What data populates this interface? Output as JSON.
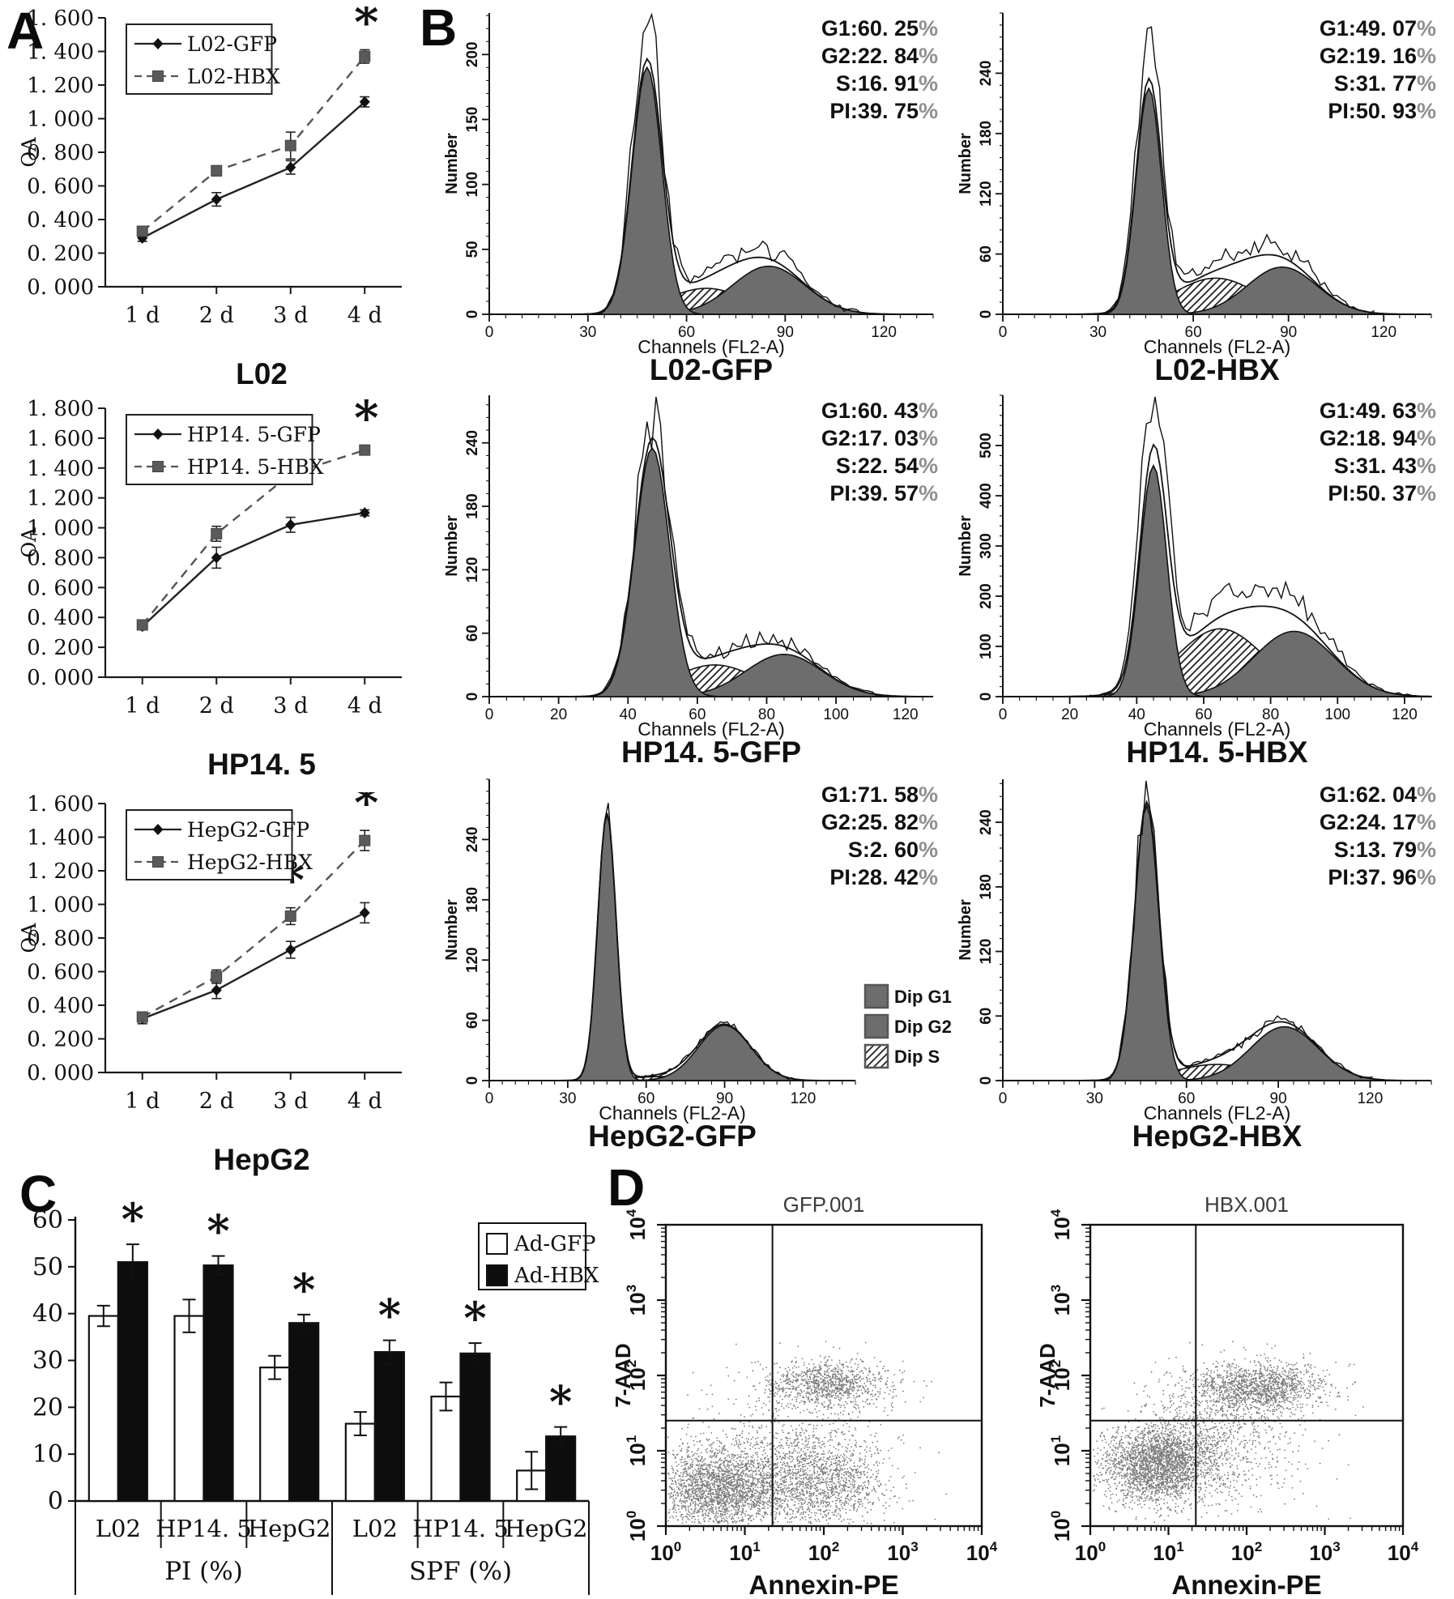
{
  "figure": {
    "panel_labels": {
      "A": "A",
      "B": "B",
      "C": "C",
      "D": "D"
    }
  },
  "chart_data": [
    {
      "type": "line",
      "panel": "A",
      "title": "L02",
      "ylabel": "OA",
      "ylim": [
        0,
        1.6
      ],
      "ytick_values": [
        0,
        0.2,
        0.4,
        0.6,
        0.8,
        1.0,
        1.2,
        1.4,
        1.6
      ],
      "ytick_labels": [
        "0. 000",
        "0. 200",
        "0. 400",
        "0. 600",
        "0. 800",
        "1. 000",
        "1. 200",
        "1. 400",
        "1. 600"
      ],
      "categories": [
        "1 d",
        "2 d",
        "3 d",
        "4 d"
      ],
      "series": [
        {
          "name": "L02-GFP",
          "line": "solid",
          "marker": "diamond",
          "values": [
            0.29,
            0.52,
            0.71,
            1.1
          ],
          "errors": [
            0.02,
            0.04,
            0.04,
            0.03
          ]
        },
        {
          "name": "L02-HBX",
          "line": "dashed",
          "marker": "square",
          "values": [
            0.33,
            0.69,
            0.84,
            1.37
          ],
          "errors": [
            0.02,
            0.03,
            0.08,
            0.04
          ]
        }
      ],
      "asterisk_at": [
        3
      ]
    },
    {
      "type": "line",
      "panel": "A",
      "title": "HP14. 5",
      "ylabel": "OA",
      "ylim": [
        0,
        1.8
      ],
      "ytick_values": [
        0,
        0.2,
        0.4,
        0.6,
        0.8,
        1.0,
        1.2,
        1.4,
        1.6,
        1.8
      ],
      "ytick_labels": [
        "0. 000",
        "0. 200",
        "0. 400",
        "0. 600",
        "0. 800",
        "1. 000",
        "1. 200",
        "1. 400",
        "1. 600",
        "1. 800"
      ],
      "categories": [
        "1 d",
        "2 d",
        "3 d",
        "4 d"
      ],
      "series": [
        {
          "name": "HP14. 5-GFP",
          "line": "solid",
          "marker": "diamond",
          "values": [
            0.34,
            0.8,
            1.02,
            1.1
          ],
          "errors": [
            0.02,
            0.07,
            0.05,
            0.02
          ]
        },
        {
          "name": "HP14. 5-HBX",
          "line": "dashed",
          "marker": "square",
          "values": [
            0.35,
            0.96,
            1.36,
            1.52
          ],
          "errors": [
            0.02,
            0.05,
            0.06,
            0.03
          ]
        }
      ],
      "asterisk_at": [
        2,
        3
      ]
    },
    {
      "type": "line",
      "panel": "A",
      "title": "HepG2",
      "ylabel": "OA",
      "ylim": [
        0,
        1.6
      ],
      "ytick_values": [
        0,
        0.2,
        0.4,
        0.6,
        0.8,
        1.0,
        1.2,
        1.4,
        1.6
      ],
      "ytick_labels": [
        "0. 000",
        "0. 200",
        "0. 400",
        "0. 600",
        "0. 800",
        "1. 000",
        "1. 200",
        "1. 400",
        "1. 600"
      ],
      "categories": [
        "1 d",
        "2 d",
        "3 d",
        "4 d"
      ],
      "series": [
        {
          "name": "HepG2-GFP",
          "line": "solid",
          "marker": "diamond",
          "values": [
            0.32,
            0.49,
            0.73,
            0.95
          ],
          "errors": [
            0.03,
            0.05,
            0.05,
            0.06
          ]
        },
        {
          "name": "HepG2-HBX",
          "line": "dashed",
          "marker": "square",
          "values": [
            0.33,
            0.57,
            0.93,
            1.38
          ],
          "errors": [
            0.03,
            0.04,
            0.05,
            0.06
          ]
        }
      ],
      "asterisk_at": [
        2,
        3
      ]
    },
    {
      "type": "flow-histogram",
      "panel": "B",
      "title": "L02-GFP",
      "xlabel": "Channels (FL2-A)",
      "ylabel": "Number",
      "xlim": [
        0,
        135
      ],
      "xticks": [
        0,
        30,
        60,
        90,
        120
      ],
      "ylim": [
        0,
        232
      ],
      "yticks": [
        0,
        50,
        100,
        150,
        200
      ],
      "stats": [
        {
          "k": "G1",
          "v": "60. 25"
        },
        {
          "k": "G2",
          "v": "22. 84"
        },
        {
          "k": "S",
          "v": "16. 91"
        },
        {
          "k": "PI",
          "v": "39. 75"
        }
      ],
      "g1": {
        "mu": 48,
        "sig": 4.5,
        "amp": 190
      },
      "g2": {
        "mu": 85,
        "sig": 11,
        "amp": 37
      },
      "s": {
        "mu": 66,
        "sig": 12,
        "amp": 20
      },
      "raw_bias": 0.13,
      "noise": 0.16,
      "seed": 3,
      "legend": null
    },
    {
      "type": "flow-histogram",
      "panel": "B",
      "title": "L02-HBX",
      "xlabel": "Channels (FL2-A)",
      "ylabel": "Number",
      "xlim": [
        0,
        135
      ],
      "xticks": [
        0,
        30,
        60,
        90,
        120
      ],
      "ylim": [
        0,
        300
      ],
      "yticks": [
        0,
        60,
        120,
        180,
        240
      ],
      "stats": [
        {
          "k": "G1",
          "v": "49. 07"
        },
        {
          "k": "G2",
          "v": "19. 16"
        },
        {
          "k": "S",
          "v": "31. 77"
        },
        {
          "k": "PI",
          "v": "50. 93"
        }
      ],
      "g1": {
        "mu": 46,
        "sig": 4,
        "amp": 225
      },
      "g2": {
        "mu": 88,
        "sig": 11,
        "amp": 47
      },
      "s": {
        "mu": 67,
        "sig": 13,
        "amp": 36
      },
      "raw_bias": 0.2,
      "noise": 0.18,
      "seed": 11,
      "legend": null
    },
    {
      "type": "flow-histogram",
      "panel": "B",
      "title": "HP14. 5-GFP",
      "xlabel": "Channels (FL2-A)",
      "ylabel": "Number",
      "xlim": [
        0,
        128
      ],
      "xticks": [
        0,
        20,
        40,
        60,
        80,
        100,
        120
      ],
      "ylim": [
        0,
        285
      ],
      "yticks": [
        0,
        60,
        120,
        180,
        240
      ],
      "stats": [
        {
          "k": "G1",
          "v": "60. 43"
        },
        {
          "k": "G2",
          "v": "17. 03"
        },
        {
          "k": "S",
          "v": "22. 54"
        },
        {
          "k": "PI",
          "v": "39. 57"
        }
      ],
      "g1": {
        "mu": 47,
        "sig": 5,
        "amp": 235
      },
      "g2": {
        "mu": 85,
        "sig": 11,
        "amp": 40
      },
      "s": {
        "mu": 65,
        "sig": 12,
        "amp": 30
      },
      "raw_bias": 0.1,
      "noise": 0.18,
      "seed": 21,
      "legend": null
    },
    {
      "type": "flow-histogram",
      "panel": "B",
      "title": "HP14. 5-HBX",
      "xlabel": "Channels (FL2-A)",
      "ylabel": "Number",
      "xlim": [
        0,
        128
      ],
      "xticks": [
        0,
        20,
        40,
        60,
        80,
        100,
        120
      ],
      "ylim": [
        0,
        600
      ],
      "yticks": [
        0,
        100,
        200,
        300,
        400,
        500
      ],
      "stats": [
        {
          "k": "G1",
          "v": "49. 63"
        },
        {
          "k": "G2",
          "v": "18. 94"
        },
        {
          "k": "S",
          "v": "31. 43"
        },
        {
          "k": "PI",
          "v": "50. 37"
        }
      ],
      "g1": {
        "mu": 45,
        "sig": 4,
        "amp": 460
      },
      "g2": {
        "mu": 87,
        "sig": 12,
        "amp": 130
      },
      "s": {
        "mu": 65,
        "sig": 13,
        "amp": 135
      },
      "raw_bias": 0.22,
      "noise": 0.15,
      "seed": 31,
      "legend": null
    },
    {
      "type": "flow-histogram",
      "panel": "B",
      "title": "HepG2-GFP",
      "xlabel": "Channels (FL2-A)",
      "ylabel": "Number",
      "xlim": [
        0,
        140
      ],
      "xticks": [
        0,
        30,
        60,
        90,
        120
      ],
      "ylim": [
        0,
        300
      ],
      "yticks": [
        0,
        60,
        120,
        180,
        240
      ],
      "stats": [
        {
          "k": "G1",
          "v": "71. 58"
        },
        {
          "k": "G2",
          "v": "25. 82"
        },
        {
          "k": "S",
          "v": "2. 60"
        },
        {
          "k": "PI",
          "v": "28. 42"
        }
      ],
      "g1": {
        "mu": 45,
        "sig": 3.5,
        "amp": 265
      },
      "g2": {
        "mu": 90,
        "sig": 10,
        "amp": 55
      },
      "s": {
        "mu": 67,
        "sig": 15,
        "amp": 4
      },
      "raw_bias": 0.02,
      "noise": 0.05,
      "seed": 41,
      "plot_right": 508,
      "legend": [
        {
          "label": "Dip G1",
          "fill": "dark"
        },
        {
          "label": "Dip G2",
          "fill": "dark"
        },
        {
          "label": "Dip S",
          "fill": "hatch"
        }
      ]
    },
    {
      "type": "flow-histogram",
      "panel": "B",
      "title": "HepG2-HBX",
      "xlabel": "Channels (FL2-A)",
      "ylabel": "Number",
      "xlim": [
        0,
        140
      ],
      "xticks": [
        0,
        30,
        60,
        90,
        120
      ],
      "ylim": [
        0,
        280
      ],
      "yticks": [
        0,
        60,
        120,
        180,
        240
      ],
      "stats": [
        {
          "k": "G1",
          "v": "62. 04"
        },
        {
          "k": "G2",
          "v": "24. 17"
        },
        {
          "k": "S",
          "v": "13. 79"
        },
        {
          "k": "PI",
          "v": "37. 96"
        }
      ],
      "g1": {
        "mu": 47,
        "sig": 4,
        "amp": 255
      },
      "g2": {
        "mu": 92,
        "sig": 11,
        "amp": 50
      },
      "s": {
        "mu": 70,
        "sig": 14,
        "amp": 15
      },
      "raw_bias": 0.04,
      "noise": 0.12,
      "seed": 51,
      "legend": null
    },
    {
      "type": "bar",
      "panel": "C",
      "ylim": [
        0,
        60
      ],
      "yticks": [
        0,
        10,
        20,
        30,
        40,
        50,
        60
      ],
      "categories": [
        "L02",
        "HP14. 5",
        "HepG2",
        "L02",
        "HP14. 5",
        "HepG2"
      ],
      "groups": [
        {
          "label": "PI (%)",
          "from": 0,
          "to": 2
        },
        {
          "label": "SPF (%)",
          "from": 3,
          "to": 5
        }
      ],
      "series": [
        {
          "name": "Ad-GFP",
          "fill": "white",
          "values": [
            39.5,
            39.5,
            28.5,
            16.5,
            22.3,
            6.5
          ],
          "errors": [
            2.2,
            3.5,
            2.5,
            2.5,
            3.0,
            4.0
          ],
          "asterisk": false
        },
        {
          "name": "Ad-HBX",
          "fill": "black",
          "values": [
            51.0,
            50.3,
            38.0,
            31.8,
            31.5,
            13.8
          ],
          "errors": [
            3.8,
            2.0,
            1.8,
            2.5,
            2.2,
            2.0
          ],
          "asterisk": true
        }
      ]
    },
    {
      "type": "scatter",
      "panel": "D",
      "title": "GFP.001",
      "xlabel": "Annexin-PE",
      "ylabel": "7-AAD",
      "xlog_range": [
        0,
        4
      ],
      "ylog_range": [
        0,
        4
      ],
      "quadrant_cross": {
        "x_log": 1.35,
        "y_log": 1.4
      },
      "seed": 7,
      "clusters": [
        {
          "n": 2400,
          "cx": 0.7,
          "cy": 0.52,
          "sx": 0.4,
          "sy": 0.28
        },
        {
          "n": 1500,
          "cx": 1.95,
          "cy": 0.6,
          "sx": 0.45,
          "sy": 0.3
        },
        {
          "n": 1000,
          "cx": 2.05,
          "cy": 1.88,
          "sx": 0.4,
          "sy": 0.16
        },
        {
          "n": 300,
          "cx": 1.55,
          "cy": 1.15,
          "sx": 0.55,
          "sy": 0.4
        }
      ]
    },
    {
      "type": "scatter",
      "panel": "D",
      "title": "HBX.001",
      "xlabel": "Annexin-PE",
      "ylabel": "7-AAD",
      "xlog_range": [
        0,
        4
      ],
      "ylog_range": [
        0,
        4
      ],
      "quadrant_cross": {
        "x_log": 1.35,
        "y_log": 1.4
      },
      "seed": 13,
      "clusters": [
        {
          "n": 2600,
          "cx": 0.88,
          "cy": 0.82,
          "sx": 0.38,
          "sy": 0.26
        },
        {
          "n": 1400,
          "cx": 2.15,
          "cy": 1.85,
          "sx": 0.45,
          "sy": 0.17
        },
        {
          "n": 500,
          "cx": 1.55,
          "cy": 1.35,
          "sx": 0.45,
          "sy": 0.35
        },
        {
          "n": 250,
          "cx": 1.9,
          "cy": 0.8,
          "sx": 0.5,
          "sy": 0.4
        }
      ]
    }
  ]
}
